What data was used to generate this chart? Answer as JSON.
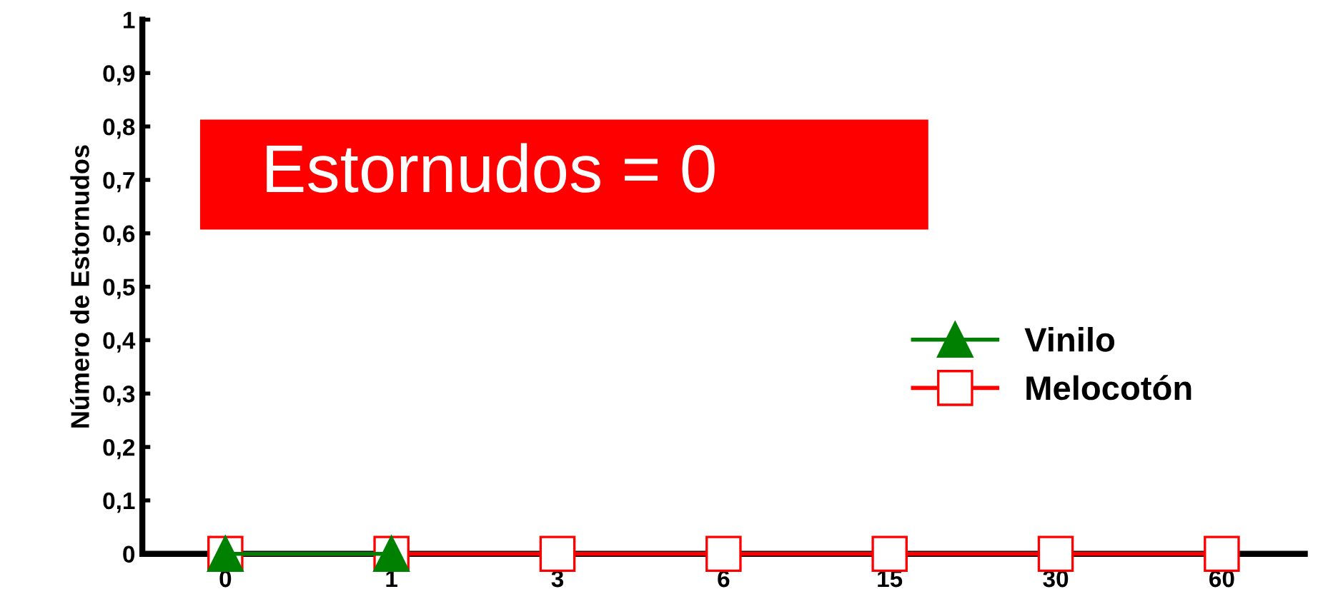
{
  "chart_data": {
    "type": "line",
    "ylabel": "Número de Estornudos",
    "categories": [
      "0",
      "1",
      "3",
      "6",
      "15",
      "30",
      "60"
    ],
    "series": [
      {
        "name": "Vinilo",
        "color": "#008000",
        "marker": "triangle",
        "values": [
          0,
          0,
          null,
          null,
          null,
          null,
          null
        ]
      },
      {
        "name": "Melocotón",
        "color": "#ff0000",
        "marker": "square",
        "values": [
          0,
          0,
          0,
          0,
          0,
          0,
          0
        ]
      }
    ],
    "ylim": [
      0,
      1
    ],
    "yticks": [
      0,
      {
        "value": 0.1,
        "label": "0,1"
      },
      {
        "value": 0.2,
        "label": "0,2"
      },
      {
        "value": 0.3,
        "label": "0,3"
      },
      {
        "value": 0.4,
        "label": "0,4"
      },
      {
        "value": 0.5,
        "label": "0,5"
      },
      {
        "value": 0.6,
        "label": "0,6"
      },
      {
        "value": 0.7,
        "label": "0,7"
      },
      {
        "value": 0.8,
        "label": "0,8"
      },
      {
        "value": 0.9,
        "label": "0,9"
      },
      1
    ],
    "annotations": [
      "Estornudos = 0"
    ],
    "grid": false,
    "legend": "right"
  }
}
